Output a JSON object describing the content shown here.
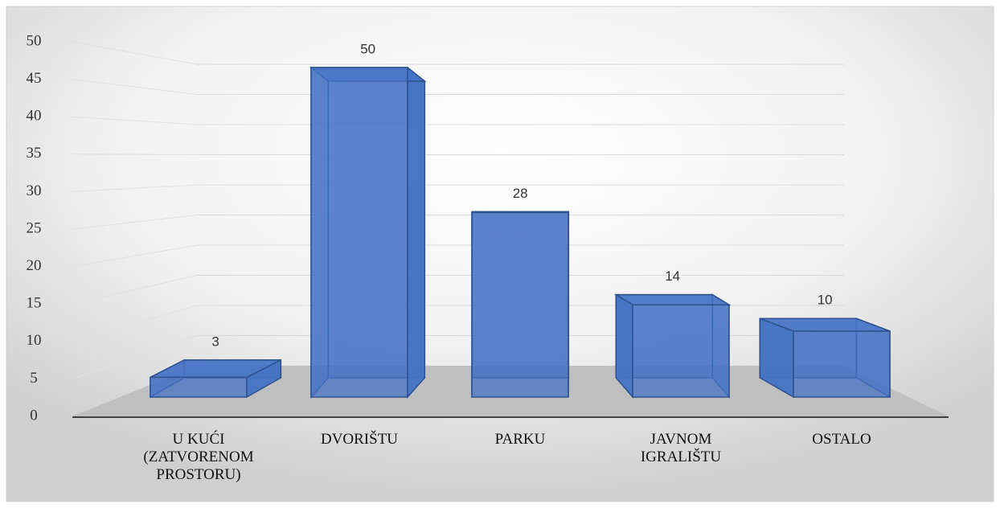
{
  "chart_data": {
    "type": "bar3d",
    "categories": [
      "U KUĆI (ZATVORENOM PROSTORU)",
      "DVORIŠTU",
      "PARKU",
      "JAVNOM IGRALIŠTU",
      "OSTALO"
    ],
    "values": [
      3,
      50,
      28,
      14,
      10
    ],
    "color": "#4472c4",
    "ylim": [
      0,
      50
    ],
    "yticks": [
      0,
      5,
      10,
      15,
      20,
      25,
      30,
      35,
      40,
      45,
      50
    ],
    "grid": true
  }
}
